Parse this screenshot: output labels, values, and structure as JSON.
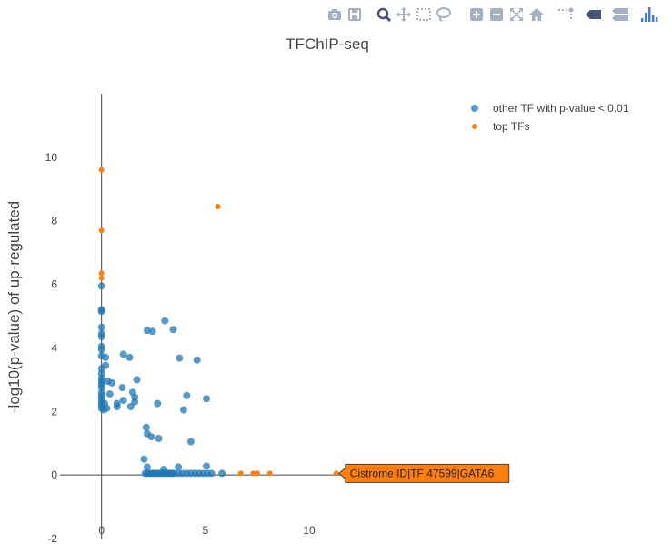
{
  "modebar": {
    "buttons": [
      {
        "name": "download-png-icon"
      },
      {
        "name": "save-icon"
      },
      {
        "name": "zoom-icon"
      },
      {
        "name": "pan-icon"
      },
      {
        "name": "box-select-icon"
      },
      {
        "name": "lasso-select-icon"
      },
      {
        "name": "zoom-in-icon"
      },
      {
        "name": "zoom-out-icon"
      },
      {
        "name": "autoscale-icon"
      },
      {
        "name": "reset-axes-icon"
      },
      {
        "name": "spike-lines-icon"
      },
      {
        "name": "hover-closest-icon"
      },
      {
        "name": "hover-compare-icon"
      },
      {
        "name": "plotly-logo-icon"
      }
    ],
    "icon_color": "#a3b1c4",
    "active_color": "#445577",
    "logo_color": "#447adb"
  },
  "chart_data": {
    "type": "scatter",
    "title": "TFChIP-seq",
    "ylabel": "-log10(p-value) of up-regulated",
    "xlabel": "",
    "xlim": [
      -2,
      13.5
    ],
    "ylim": [
      -2,
      12
    ],
    "xticks": [
      0,
      5,
      10
    ],
    "yticks": [
      -2,
      0,
      2,
      4,
      6,
      8,
      10
    ],
    "zeroline_x": true,
    "zeroline_y": true,
    "grid": false,
    "legend_position": "top-right",
    "hover_label": "Cistrome ID|TF 47599|GATA6",
    "hover_color": "#ff7f0e",
    "series": [
      {
        "name": "other TF with p-value < 0.01",
        "color": "#1f77b4",
        "marker_size": 8,
        "opacity": 0.75,
        "points": [
          [
            0,
            5.95
          ],
          [
            0,
            5.2
          ],
          [
            0,
            5.15
          ],
          [
            0,
            4.65
          ],
          [
            0,
            4.45
          ],
          [
            0,
            4.35
          ],
          [
            0,
            4.05
          ],
          [
            0,
            3.95
          ],
          [
            0,
            3.75
          ],
          [
            0,
            3.35
          ],
          [
            0,
            3.2
          ],
          [
            0,
            3.05
          ],
          [
            0,
            2.95
          ],
          [
            0,
            2.85
          ],
          [
            0,
            2.75
          ],
          [
            0,
            2.6
          ],
          [
            0,
            2.5
          ],
          [
            0,
            2.4
          ],
          [
            0,
            2.3
          ],
          [
            0,
            2.2
          ],
          [
            0,
            2.1
          ],
          [
            0.1,
            2.05
          ],
          [
            0.15,
            2.25
          ],
          [
            0.2,
            3.45
          ],
          [
            0.2,
            3.7
          ],
          [
            0.25,
            2.1
          ],
          [
            0.3,
            2.95
          ],
          [
            0.4,
            2.55
          ],
          [
            0.5,
            2.9
          ],
          [
            0.75,
            2.25
          ],
          [
            0.75,
            2.15
          ],
          [
            1,
            2.75
          ],
          [
            1.05,
            3.8
          ],
          [
            1.05,
            2.35
          ],
          [
            1.35,
            3.7
          ],
          [
            1.4,
            2.15
          ],
          [
            1.5,
            2.6
          ],
          [
            1.6,
            2.45
          ],
          [
            1.6,
            2.3
          ],
          [
            1.7,
            3.0
          ],
          [
            2.15,
            1.5
          ],
          [
            2.2,
            1.3
          ],
          [
            2.2,
            4.55
          ],
          [
            2.4,
            1.2
          ],
          [
            2.45,
            4.52
          ],
          [
            2.7,
            2.25
          ],
          [
            2.75,
            1.15
          ],
          [
            3.05,
            4.85
          ],
          [
            3.45,
            4.58
          ],
          [
            3.75,
            3.68
          ],
          [
            3.95,
            2.05
          ],
          [
            4.1,
            2.5
          ],
          [
            4.3,
            1.05
          ],
          [
            4.6,
            3.62
          ],
          [
            5.05,
            2.4
          ],
          [
            2.05,
            0.5
          ],
          [
            2.2,
            0.25
          ],
          [
            3.0,
            0.18
          ],
          [
            3.7,
            0.25
          ],
          [
            5.05,
            0.28
          ],
          [
            2.1,
            0.05
          ],
          [
            2.2,
            0.05
          ],
          [
            2.3,
            0.05
          ],
          [
            2.4,
            0.05
          ],
          [
            2.5,
            0.05
          ],
          [
            2.6,
            0.05
          ],
          [
            2.7,
            0.05
          ],
          [
            2.8,
            0.05
          ],
          [
            2.9,
            0.05
          ],
          [
            3.0,
            0.05
          ],
          [
            3.1,
            0.05
          ],
          [
            3.2,
            0.05
          ],
          [
            3.3,
            0.05
          ],
          [
            3.4,
            0.05
          ],
          [
            3.5,
            0.05
          ],
          [
            3.7,
            0.05
          ],
          [
            3.9,
            0.05
          ],
          [
            4.1,
            0.05
          ],
          [
            4.3,
            0.05
          ],
          [
            4.5,
            0.05
          ],
          [
            4.7,
            0.05
          ],
          [
            4.9,
            0.05
          ],
          [
            5.1,
            0.05
          ],
          [
            5.3,
            0.05
          ],
          [
            5.8,
            0.05
          ]
        ]
      },
      {
        "name": "top TFs",
        "color": "#ff7f0e",
        "marker_size": 6,
        "opacity": 1,
        "points": [
          [
            0,
            9.6
          ],
          [
            0,
            7.7
          ],
          [
            0,
            6.35
          ],
          [
            0,
            6.2
          ],
          [
            5.6,
            8.45
          ],
          [
            6.7,
            0.05
          ],
          [
            7.3,
            0.05
          ],
          [
            7.5,
            0.05
          ],
          [
            8.1,
            0.05
          ],
          [
            11.3,
            0.05
          ]
        ]
      }
    ]
  }
}
